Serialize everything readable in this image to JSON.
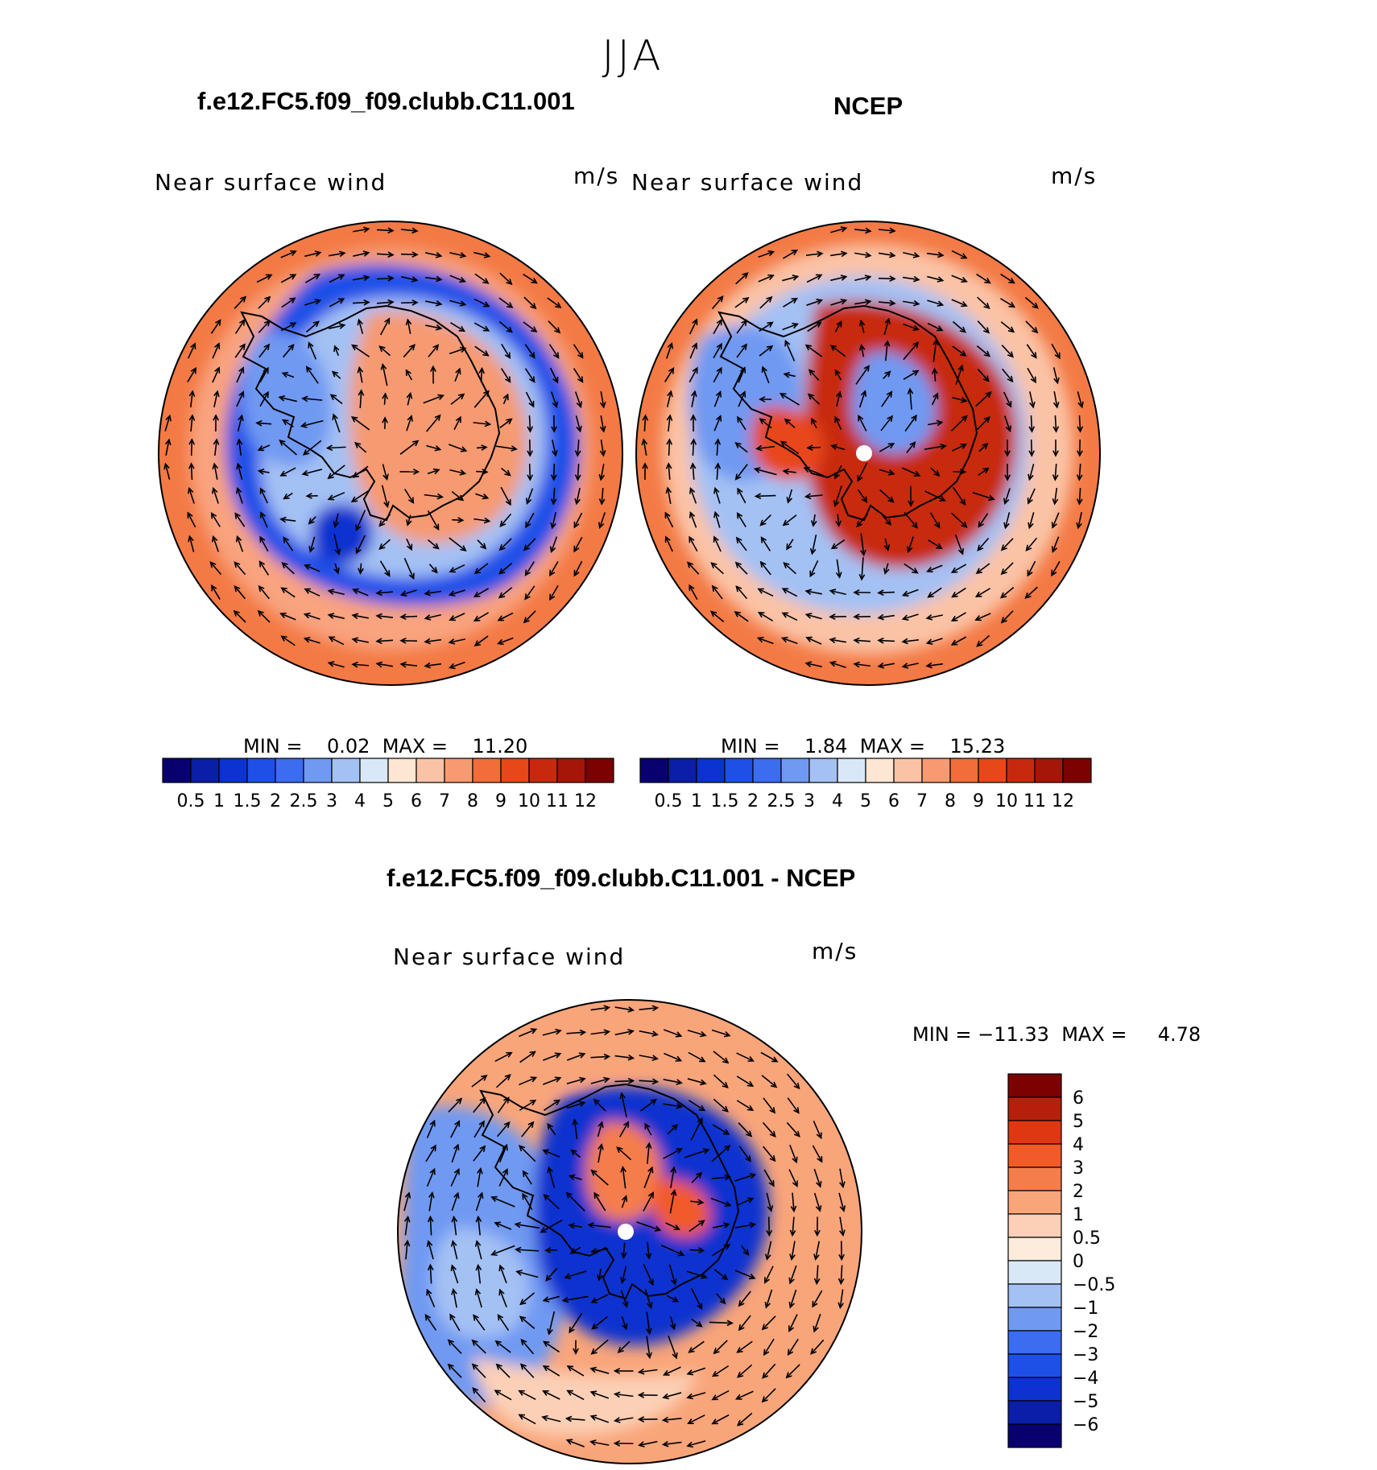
{
  "figure": {
    "season": "JJA",
    "variable_label": "Near surface wind",
    "units": "m/s"
  },
  "panels": {
    "model": {
      "title": "f.e12.FC5.f09_f09.clubb.C11.001",
      "min_label": "MIN =",
      "min_value": "0.02",
      "max_label": "MAX =",
      "max_value": "11.20"
    },
    "obs": {
      "title": "NCEP",
      "min_label": "MIN =",
      "min_value": "1.84",
      "max_label": "MAX =",
      "max_value": "15.23"
    },
    "diff": {
      "title": "f.e12.FC5.f09_f09.clubb.C11.001 - NCEP",
      "min_label": "MIN =",
      "min_value": "−11.33",
      "max_label": "MAX =",
      "max_value": "4.78"
    }
  },
  "colorbars": {
    "abs_labels": [
      "0.5",
      "1",
      "1.5",
      "2",
      "2.5",
      "3",
      "4",
      "5",
      "6",
      "7",
      "8",
      "9",
      "10",
      "11",
      "12"
    ],
    "abs_colors": [
      "#08006f",
      "#0a1ea8",
      "#0c33cf",
      "#1e50e8",
      "#3c6cf0",
      "#7099f2",
      "#a4c1f4",
      "#d8e8f7",
      "#fde6d2",
      "#fbc3a6",
      "#f69a72",
      "#f26d3a",
      "#e8471a",
      "#c7290f",
      "#a51608",
      "#7c0101"
    ],
    "diff_labels": [
      "6",
      "5",
      "4",
      "3",
      "2",
      "1",
      "0.5",
      "0",
      "−0.5",
      "−1",
      "−2",
      "−3",
      "−4",
      "−5",
      "−6"
    ],
    "diff_colors": [
      "#7c0101",
      "#b5200c",
      "#e03713",
      "#f25a2a",
      "#f57d4c",
      "#f9a57a",
      "#fcd0b6",
      "#fdebdc",
      "#d8e8f7",
      "#a4c1f4",
      "#7099f2",
      "#3c6cf0",
      "#1e50e8",
      "#0c33cf",
      "#0a1ea8",
      "#08006f"
    ]
  }
}
